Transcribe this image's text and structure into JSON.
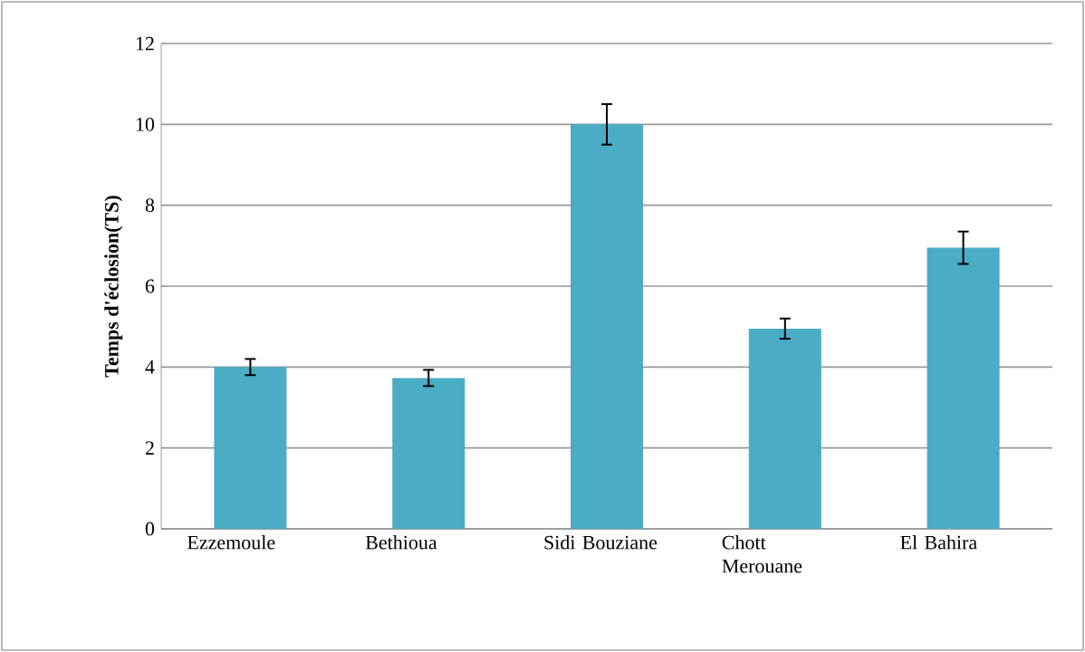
{
  "chart_data": {
    "type": "bar",
    "ylabel": "Temps d'éclosion(TS)",
    "categories": [
      "Ezzemoule",
      "Bethioua",
      "Sidi Bouziane",
      "Chott Merouane",
      "El Bahira"
    ],
    "values": [
      4.0,
      3.73,
      10.0,
      4.95,
      6.95
    ],
    "errors": [
      0.2,
      0.2,
      0.5,
      0.25,
      0.4
    ],
    "color": "#4bacc6",
    "ylim": [
      0,
      12
    ],
    "yticks": [
      0,
      2,
      4,
      6,
      8,
      10,
      12
    ],
    "grid": "y"
  }
}
